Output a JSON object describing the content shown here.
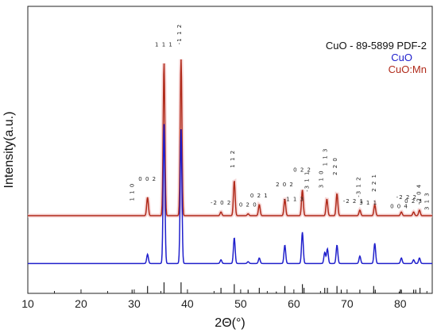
{
  "chart_data": {
    "type": "line",
    "xlabel": "2Θ(°)",
    "ylabel": "Intensity(a.u.)",
    "xlim": [
      10,
      86
    ],
    "xticks": [
      10,
      20,
      30,
      40,
      50,
      60,
      70,
      80
    ],
    "y_ticks_labeled": false,
    "grid": false,
    "legend": {
      "placement": "top-right",
      "entries": [
        {
          "label": "CuO - 89-5899 PDF-2",
          "color": "#111111"
        },
        {
          "label": "CuO",
          "color": "#2020cc"
        },
        {
          "label": "CuO:Mn",
          "color": "#b02a1a"
        }
      ]
    },
    "series": [
      {
        "name": "CuO:Mn",
        "color": "#b02a1a",
        "baseline": 0.0,
        "peaks": [
          {
            "x": 32.5,
            "h": 0.1
          },
          {
            "x": 35.6,
            "h": 0.83
          },
          {
            "x": 38.8,
            "h": 0.85
          },
          {
            "x": 46.3,
            "h": 0.02
          },
          {
            "x": 48.8,
            "h": 0.19
          },
          {
            "x": 51.4,
            "h": 0.01
          },
          {
            "x": 53.5,
            "h": 0.06
          },
          {
            "x": 58.3,
            "h": 0.09
          },
          {
            "x": 61.6,
            "h": 0.14
          },
          {
            "x": 66.2,
            "h": 0.09
          },
          {
            "x": 68.1,
            "h": 0.12
          },
          {
            "x": 72.4,
            "h": 0.03
          },
          {
            "x": 75.2,
            "h": 0.06
          },
          {
            "x": 80.2,
            "h": 0.02
          },
          {
            "x": 82.5,
            "h": 0.02
          },
          {
            "x": 83.6,
            "h": 0.03
          }
        ]
      },
      {
        "name": "CuO",
        "color": "#2020cc",
        "baseline": -0.26,
        "peaks": [
          {
            "x": 32.5,
            "h": 0.05
          },
          {
            "x": 35.6,
            "h": 0.76
          },
          {
            "x": 38.8,
            "h": 0.73
          },
          {
            "x": 46.3,
            "h": 0.02
          },
          {
            "x": 48.8,
            "h": 0.14
          },
          {
            "x": 51.4,
            "h": 0.01
          },
          {
            "x": 53.5,
            "h": 0.03
          },
          {
            "x": 58.3,
            "h": 0.1
          },
          {
            "x": 61.6,
            "h": 0.17
          },
          {
            "x": 65.8,
            "h": 0.06
          },
          {
            "x": 66.3,
            "h": 0.08
          },
          {
            "x": 68.1,
            "h": 0.1
          },
          {
            "x": 72.4,
            "h": 0.04
          },
          {
            "x": 75.2,
            "h": 0.11
          },
          {
            "x": 80.2,
            "h": 0.03
          },
          {
            "x": 82.5,
            "h": 0.02
          },
          {
            "x": 83.6,
            "h": 0.03
          }
        ]
      }
    ],
    "reference": {
      "label": "CuO - 89-5899 PDF-2",
      "lines": [
        {
          "x": 29.6,
          "h": 0.02
        },
        {
          "x": 32.5,
          "h": 0.04
        },
        {
          "x": 35.6,
          "h": 0.06
        },
        {
          "x": 38.8,
          "h": 0.06
        },
        {
          "x": 46.3,
          "h": 0.03
        },
        {
          "x": 48.8,
          "h": 0.05
        },
        {
          "x": 51.4,
          "h": 0.02
        },
        {
          "x": 53.5,
          "h": 0.03
        },
        {
          "x": 56.7,
          "h": 0.01
        },
        {
          "x": 58.3,
          "h": 0.04
        },
        {
          "x": 61.6,
          "h": 0.05
        },
        {
          "x": 61.9,
          "h": 0.03
        },
        {
          "x": 65.8,
          "h": 0.03
        },
        {
          "x": 66.3,
          "h": 0.03
        },
        {
          "x": 68.1,
          "h": 0.04
        },
        {
          "x": 68.9,
          "h": 0.02
        },
        {
          "x": 72.4,
          "h": 0.02
        },
        {
          "x": 75.0,
          "h": 0.04
        },
        {
          "x": 75.3,
          "h": 0.02
        },
        {
          "x": 79.8,
          "h": 0.01
        },
        {
          "x": 80.2,
          "h": 0.02
        },
        {
          "x": 82.5,
          "h": 0.02
        },
        {
          "x": 82.9,
          "h": 0.02
        },
        {
          "x": 83.7,
          "h": 0.03
        },
        {
          "x": 86.5,
          "h": 0.01
        }
      ]
    },
    "peak_labels": [
      {
        "text": "1 1 0",
        "x": 29.9,
        "y": 0.08,
        "rotate": true
      },
      {
        "text": "0 0 2",
        "x": 32.5,
        "y": 0.19,
        "rotate": false
      },
      {
        "text": "1 1 1",
        "x": 35.6,
        "y": 0.92,
        "rotate": false
      },
      {
        "text": "-1 1 2",
        "x": 38.8,
        "y": 0.93,
        "rotate": true
      },
      {
        "text": "-2 0 2",
        "x": 46.3,
        "y": 0.06,
        "rotate": false
      },
      {
        "text": "1 1 2",
        "x": 48.8,
        "y": 0.26,
        "rotate": true
      },
      {
        "text": "0 2 0",
        "x": 51.4,
        "y": 0.05,
        "rotate": false
      },
      {
        "text": "0 2 1",
        "x": 53.5,
        "y": 0.1,
        "rotate": false
      },
      {
        "text": "2 0 2",
        "x": 58.3,
        "y": 0.16,
        "rotate": false
      },
      {
        "text": "-1 1 3",
        "x": 60.0,
        "y": 0.08,
        "rotate": false
      },
      {
        "text": "0 2 2",
        "x": 61.6,
        "y": 0.24,
        "rotate": false
      },
      {
        "text": "-3 1 1",
        "x": 62.8,
        "y": 0.13,
        "rotate": true
      },
      {
        "text": "3 1 0",
        "x": 65.5,
        "y": 0.15,
        "rotate": true
      },
      {
        "text": "1 1 3",
        "x": 66.2,
        "y": 0.27,
        "rotate": true
      },
      {
        "text": "2 2 0",
        "x": 68.1,
        "y": 0.22,
        "rotate": true
      },
      {
        "text": "-2 2 1",
        "x": 71.2,
        "y": 0.07,
        "rotate": false
      },
      {
        "text": "-3 1 2",
        "x": 72.5,
        "y": 0.1,
        "rotate": true
      },
      {
        "text": "3 1 1",
        "x": 74.0,
        "y": 0.06,
        "rotate": false
      },
      {
        "text": "2 2 1",
        "x": 75.4,
        "y": 0.13,
        "rotate": true
      },
      {
        "text": "0 0 4",
        "x": 79.8,
        "y": 0.04,
        "rotate": false
      },
      {
        "text": "-2 2 2",
        "x": 81.2,
        "y": 0.09,
        "rotate": false
      },
      {
        "text": "0 2 3",
        "x": 82.5,
        "y": 0.07,
        "rotate": false
      },
      {
        "text": "-2 0 4",
        "x": 83.8,
        "y": 0.06,
        "rotate": true
      },
      {
        "text": "3 1 3",
        "x": 85.3,
        "y": 0.03,
        "rotate": true
      }
    ]
  }
}
